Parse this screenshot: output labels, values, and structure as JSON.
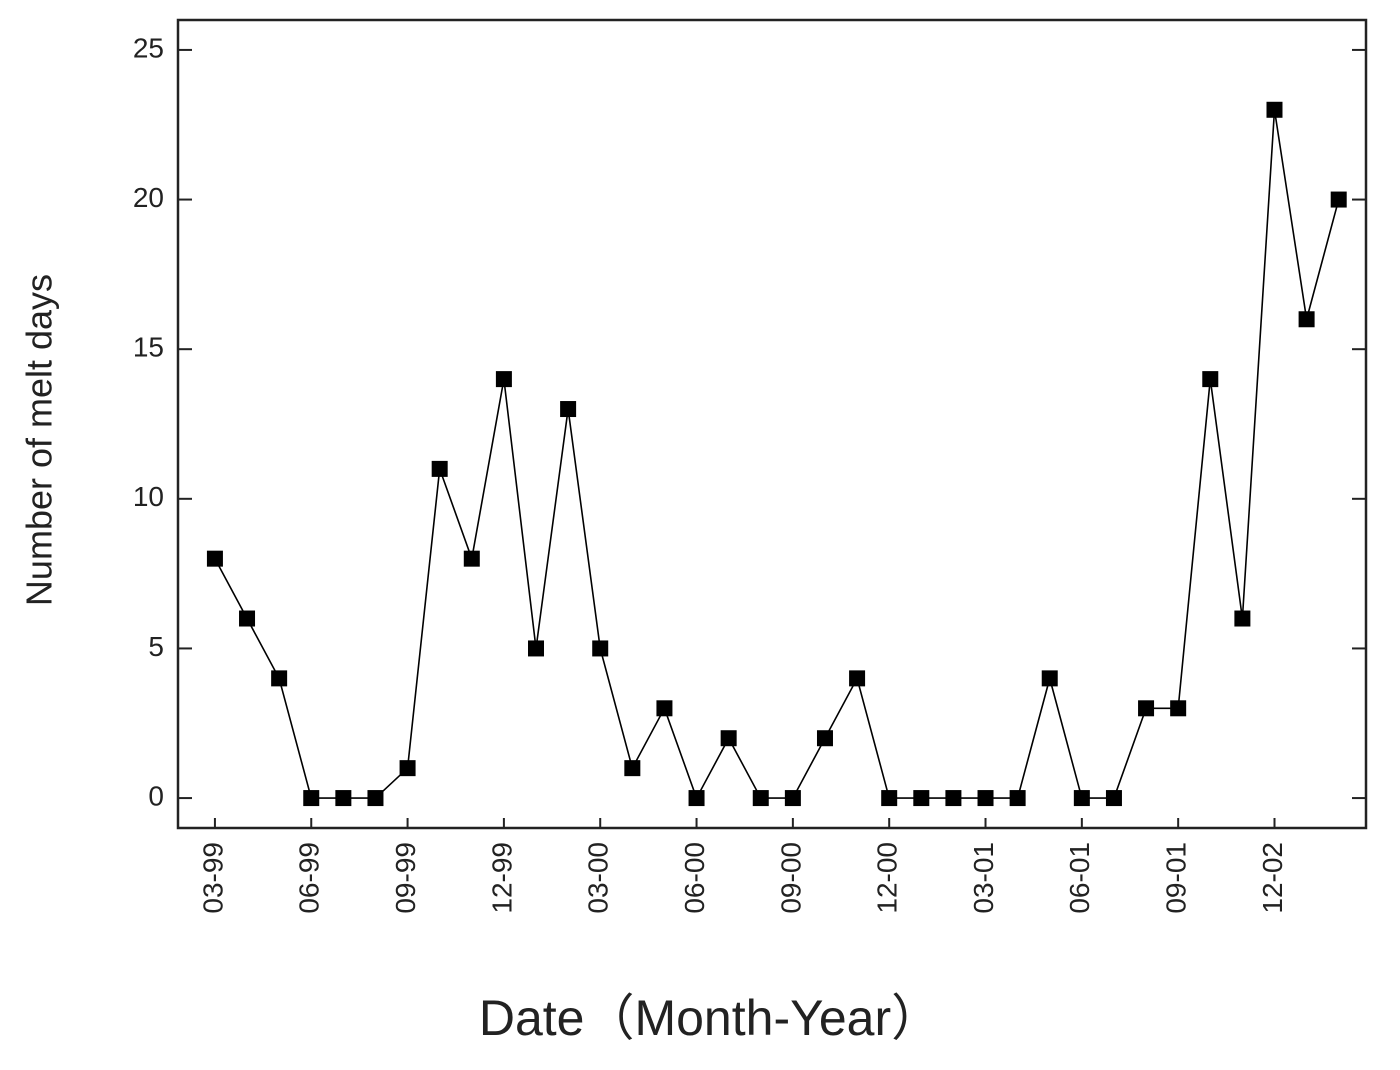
{
  "chart_data": {
    "type": "line",
    "x_label": "Date（Month-Year）",
    "y_label": "Number of melt  days",
    "categories": [
      "03-99",
      null,
      null,
      "06-99",
      null,
      null,
      "09-99",
      null,
      null,
      "12-99",
      null,
      null,
      "03-00",
      null,
      null,
      "06-00",
      null,
      null,
      "09-00",
      null,
      null,
      "12-00",
      null,
      null,
      "03-01",
      null,
      null,
      "06-01",
      null,
      null,
      "09-01",
      null,
      null,
      "12-02",
      null,
      null
    ],
    "values": [
      8,
      6,
      4,
      0,
      0,
      0,
      1,
      11,
      8,
      14,
      5,
      13,
      5,
      1,
      3,
      0,
      2,
      0,
      0,
      2,
      4,
      0,
      0,
      0,
      0,
      0,
      4,
      0,
      0,
      3,
      3,
      14,
      6,
      23,
      16,
      20
    ],
    "color": "#000000",
    "ylim": [
      -1,
      26
    ],
    "yticks": [
      0,
      5,
      10,
      15,
      20,
      25
    ]
  }
}
